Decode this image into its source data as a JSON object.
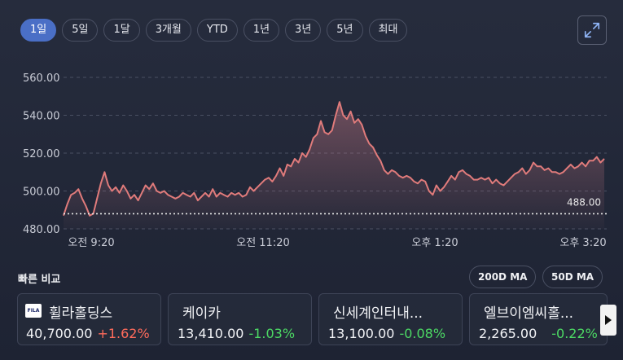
{
  "range_tabs": [
    {
      "label": "1일",
      "active": true
    },
    {
      "label": "5일",
      "active": false
    },
    {
      "label": "1달",
      "active": false
    },
    {
      "label": "3개월",
      "active": false
    },
    {
      "label": "YTD",
      "active": false
    },
    {
      "label": "1년",
      "active": false
    },
    {
      "label": "3년",
      "active": false
    },
    {
      "label": "5년",
      "active": false
    },
    {
      "label": "최대",
      "active": false
    }
  ],
  "chart_data": {
    "type": "line",
    "y_ticks": [
      "560.00",
      "540.00",
      "520.00",
      "500.00",
      "480.00"
    ],
    "y_tick_values": [
      560,
      540,
      520,
      500,
      480
    ],
    "x_ticks": [
      "오전 9:20",
      "오전 11:20",
      "오후 1:20",
      "오후 3:20"
    ],
    "ylim": [
      480,
      560
    ],
    "reference_value": 488.0,
    "reference_label": "488.00",
    "grid": true,
    "line_color": "#e07b7b",
    "series": [
      {
        "values": [
          487,
          493,
          498,
          499,
          501,
          496,
          492,
          487,
          488,
          496,
          504,
          510,
          503,
          500,
          502,
          499,
          503,
          500,
          496,
          498,
          495,
          499,
          503,
          501,
          504,
          500,
          499,
          500,
          498,
          497,
          496,
          497,
          499,
          498,
          497,
          499,
          495,
          497,
          499,
          497,
          501,
          497,
          499,
          498,
          497,
          499,
          498,
          499,
          497,
          498,
          502,
          500,
          502,
          504,
          506,
          507,
          505,
          508,
          512,
          508,
          514,
          513,
          517,
          515,
          520,
          518,
          522,
          528,
          530,
          537,
          531,
          530,
          532,
          540,
          547,
          540,
          538,
          542,
          536,
          538,
          535,
          529,
          525,
          523,
          519,
          516,
          511,
          509,
          511,
          510,
          508,
          507,
          508,
          507,
          505,
          504,
          506,
          505,
          500,
          498,
          503,
          500,
          502,
          505,
          508,
          506,
          510,
          511,
          509,
          508,
          506,
          506,
          507,
          506,
          507,
          504,
          506,
          504,
          503,
          505,
          507,
          509,
          510,
          512,
          509,
          511,
          515,
          513,
          513,
          511,
          512,
          510,
          510,
          509,
          510,
          512,
          514,
          512,
          513,
          515,
          513,
          516,
          516,
          518,
          515,
          517
        ]
      }
    ]
  },
  "compare": {
    "title": "빠른 비교",
    "ma_buttons": [
      "200D MA",
      "50D MA"
    ],
    "stocks": [
      {
        "name": "휠라홀딩스",
        "price": "40,700.00",
        "change": "+1.62%",
        "direction": "up",
        "logo": "FILA"
      },
      {
        "name": "케이카",
        "price": "13,410.00",
        "change": "-1.03%",
        "direction": "down"
      },
      {
        "name": "신세계인터내...",
        "price": "13,100.00",
        "change": "-0.08%",
        "direction": "down"
      },
      {
        "name": "엘브이엠씨홀...",
        "price": "2,265.00",
        "change": "-0.22%",
        "direction": "down"
      }
    ]
  },
  "icons": {
    "expand": "expand-arrows-icon",
    "next": "chevron-right-icon"
  }
}
